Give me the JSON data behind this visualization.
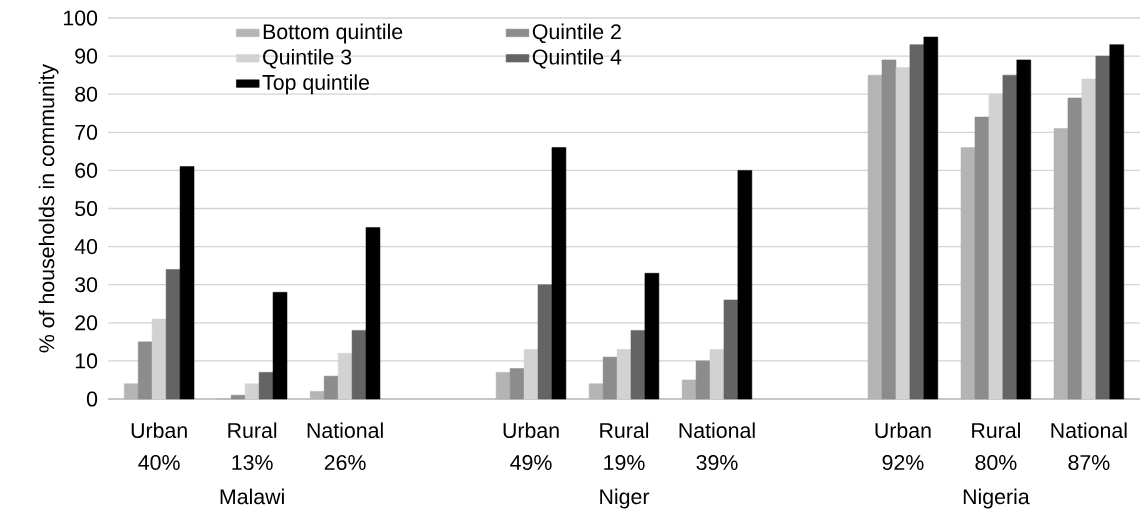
{
  "chart_data": {
    "type": "bar",
    "ylabel": "% of households in community",
    "categories": [
      "Urban 40%",
      "Rural 13%",
      "National 26%",
      null,
      "Urban 49%",
      "Rural 19%",
      "National 39%",
      null,
      "Urban 92%",
      "Rural 80%",
      "National 87%"
    ],
    "series": [
      {
        "name": "Bottom quintile",
        "color": "#b4b4b4",
        "values": [
          4,
          0,
          2,
          null,
          7,
          4,
          5,
          null,
          85,
          66,
          71
        ]
      },
      {
        "name": "Quintile 2",
        "color": "#8c8c8c",
        "values": [
          15,
          1,
          6,
          null,
          8,
          11,
          10,
          null,
          89,
          74,
          79
        ]
      },
      {
        "name": "Quintile 3",
        "color": "#d2d2d2",
        "values": [
          21,
          4,
          12,
          null,
          13,
          13,
          13,
          null,
          87,
          80,
          84
        ]
      },
      {
        "name": "Quintile 4",
        "color": "#646464",
        "values": [
          34,
          7,
          18,
          null,
          30,
          18,
          26,
          null,
          93,
          85,
          90
        ]
      },
      {
        "name": "Top quintile",
        "color": "#000000",
        "values": [
          61,
          28,
          45,
          null,
          66,
          33,
          60,
          null,
          95,
          89,
          93
        ]
      }
    ],
    "ylim": [
      0,
      100
    ],
    "yticks": [
      0,
      10,
      20,
      30,
      40,
      50,
      60,
      70,
      80,
      90,
      100
    ],
    "grid": "y",
    "legend": "top left",
    "annotations": [
      "Malawi",
      "Niger",
      "Nigeria"
    ]
  }
}
